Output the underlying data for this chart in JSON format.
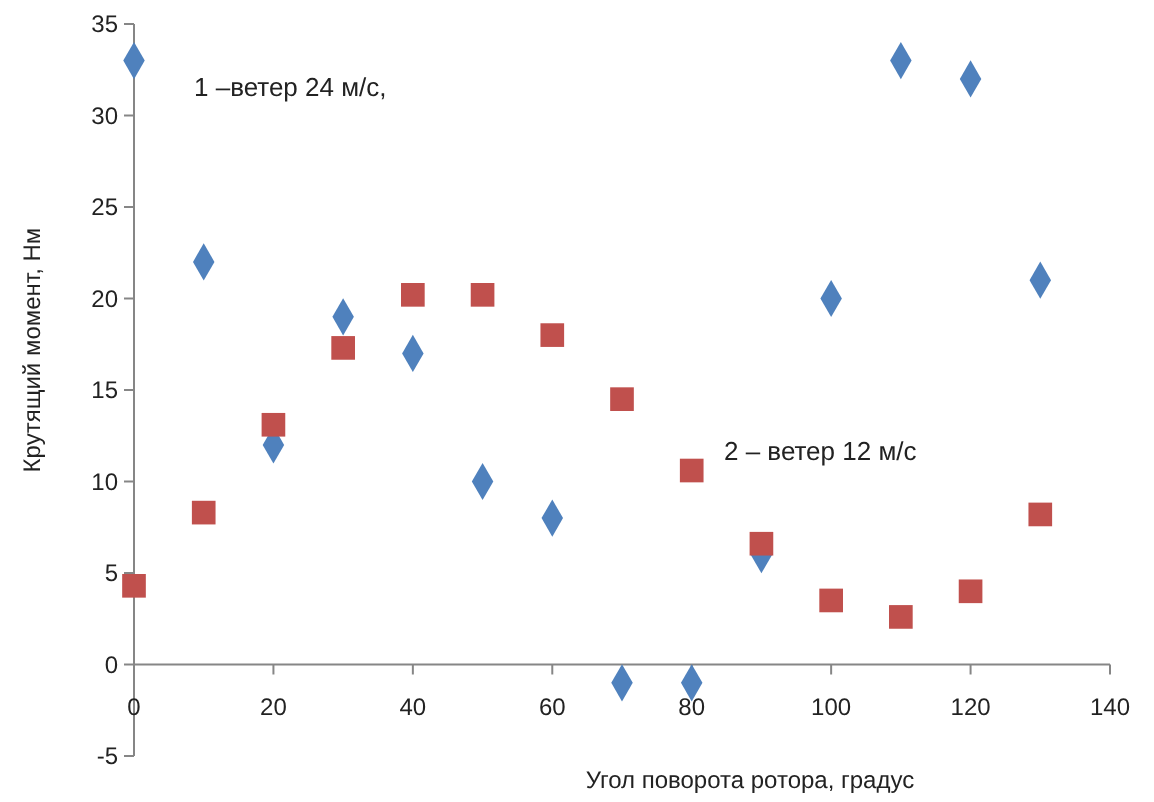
{
  "chart_data": {
    "type": "scatter",
    "xlabel": "Угол поворота ротора, градус",
    "ylabel": "Крутящий момент, Нм",
    "x": [
      0,
      10,
      20,
      30,
      40,
      50,
      60,
      70,
      80,
      90,
      100,
      110,
      120,
      130
    ],
    "xlim": [
      0,
      140
    ],
    "xticks": [
      0,
      20,
      40,
      60,
      80,
      100,
      120,
      140
    ],
    "ylim": [
      -5,
      35
    ],
    "yticks": [
      -5,
      0,
      5,
      10,
      15,
      20,
      25,
      30,
      35
    ],
    "grid": false,
    "series": [
      {
        "color": "#4f81bd",
        "marker": "diamond",
        "values": [
          33,
          22,
          12,
          19,
          17,
          10,
          8,
          -1,
          -1,
          6,
          20,
          33,
          32,
          21
        ]
      },
      {
        "color": "#c0504d",
        "marker": "square",
        "values": [
          4.3,
          8.3,
          13.1,
          17.3,
          20.2,
          20.2,
          18,
          14.5,
          10.6,
          6.6,
          3.5,
          2.6,
          4,
          8.2
        ]
      }
    ],
    "annotations": [
      "1 –ветер 24 м/с,",
      "2 – ветер 12 м/с"
    ]
  }
}
